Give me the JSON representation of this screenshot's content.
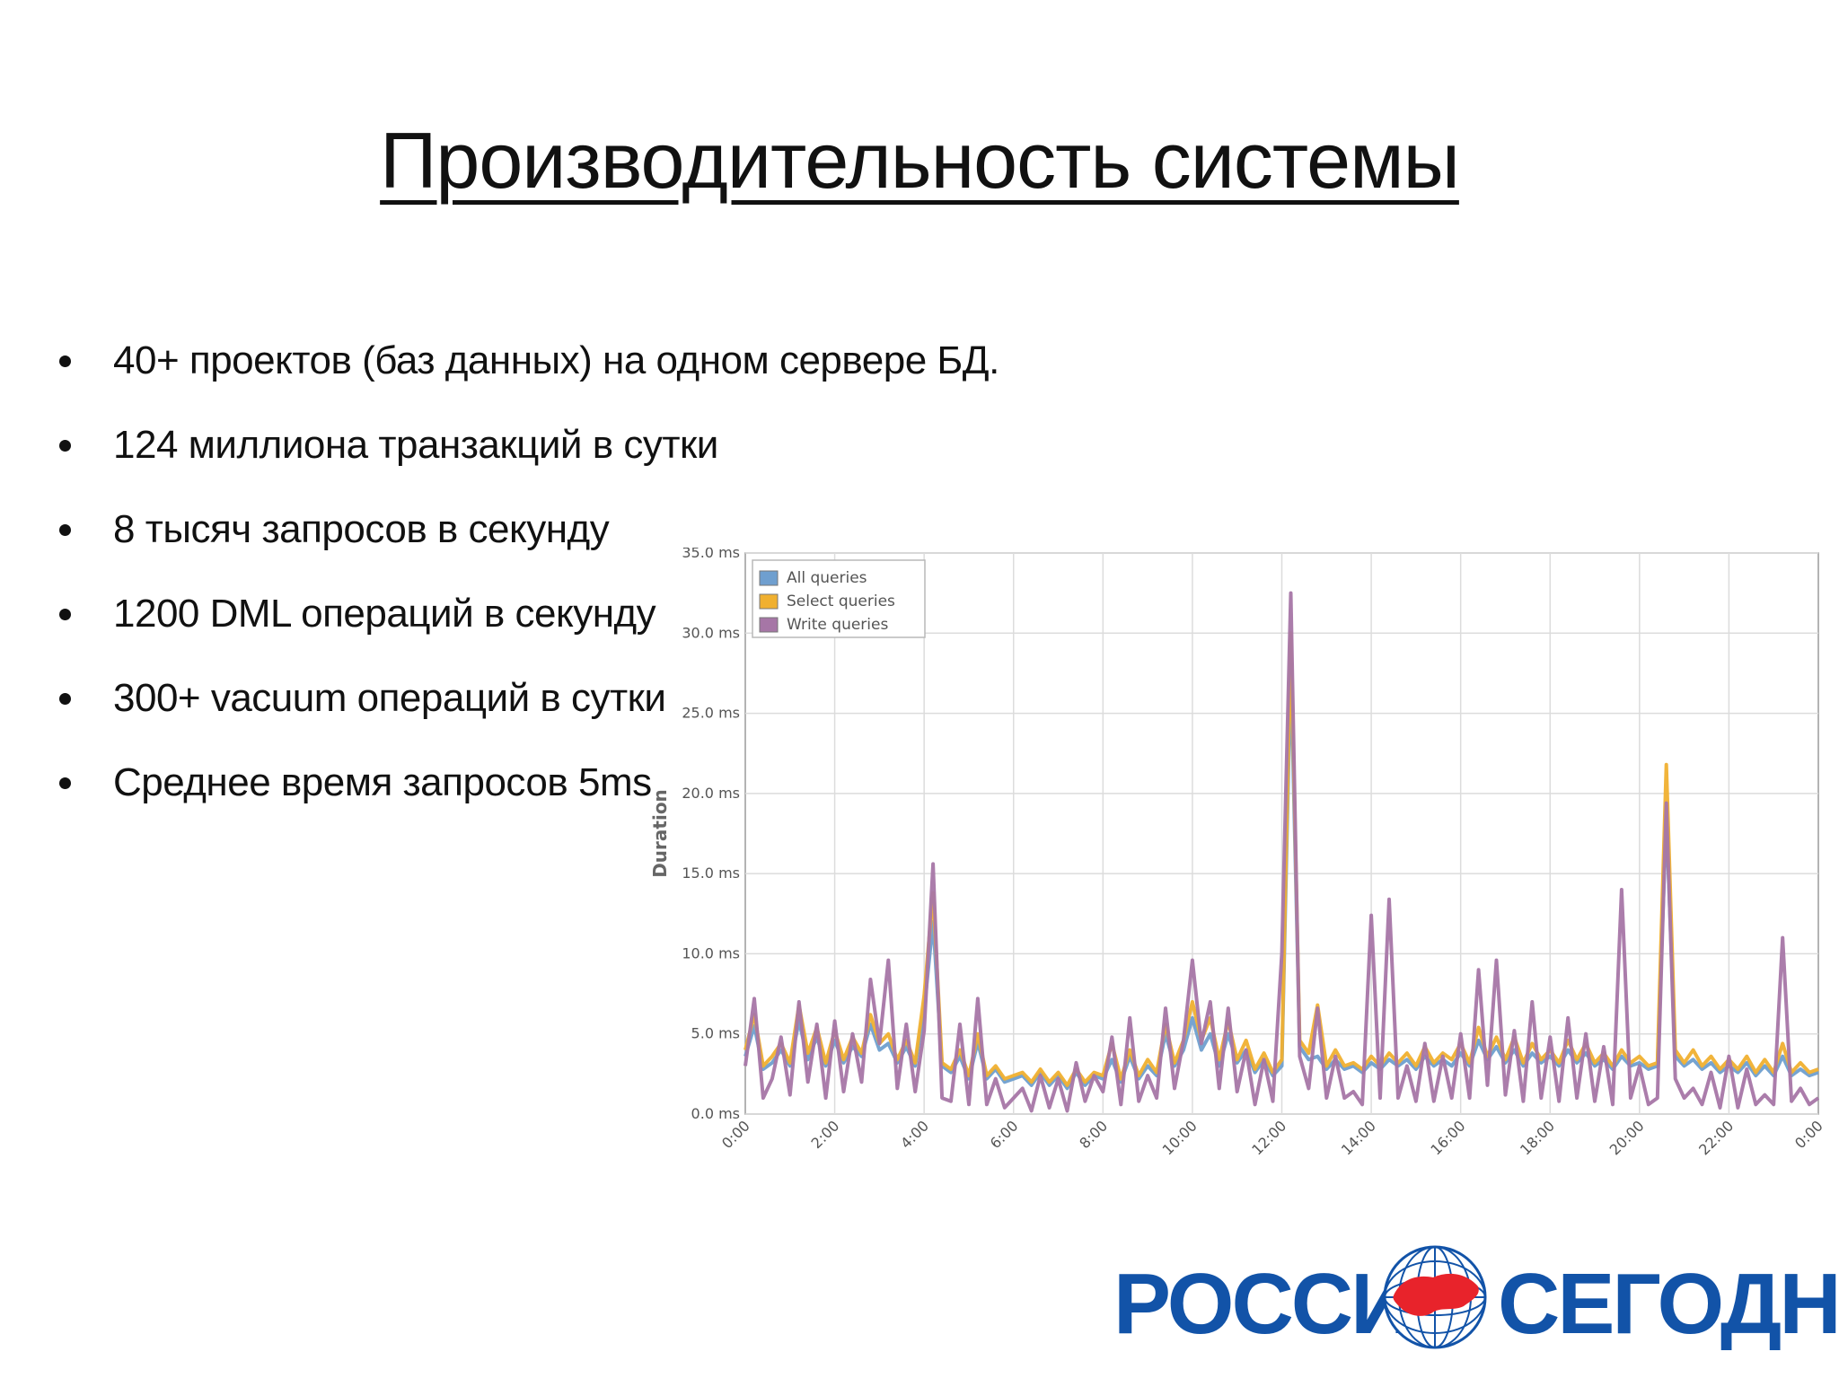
{
  "slide": {
    "title": "Производительность системы",
    "bullets": [
      "40+ проектов (баз данных) на одном сервере БД.",
      "124 миллиона транзакций в сутки",
      "8 тысяч запросов в секунду",
      "1200 DML операций в секунду",
      "300+ vacuum операций в сутки",
      "Среднее время запросов 5ms"
    ]
  },
  "logo": {
    "left_word": "РОССИЯ",
    "right_word": "СЕГОДНЯ"
  },
  "colors": {
    "all_queries": "#6f9fcf",
    "select_queries": "#f0b030",
    "write_queries": "#a676a6",
    "brand_blue": "#1253a8",
    "brand_red": "#e8232b"
  },
  "chart_data": {
    "type": "line",
    "title": "",
    "ylabel": "Duration",
    "xlabel": "",
    "ylim": [
      0,
      35
    ],
    "y_ticks": [
      "0.0 ms",
      "5.0 ms",
      "10.0 ms",
      "15.0 ms",
      "20.0 ms",
      "25.0 ms",
      "30.0 ms",
      "35.0 ms"
    ],
    "x_ticks": [
      "0:00",
      "2:00",
      "4:00",
      "6:00",
      "8:00",
      "10:00",
      "12:00",
      "14:00",
      "16:00",
      "18:00",
      "20:00",
      "22:00",
      "0:00"
    ],
    "grid": true,
    "legend_position": "top-left",
    "x": [
      0,
      0.2,
      0.4,
      0.6,
      0.8,
      1.0,
      1.2,
      1.4,
      1.6,
      1.8,
      2.0,
      2.2,
      2.4,
      2.6,
      2.8,
      3.0,
      3.2,
      3.4,
      3.6,
      3.8,
      4.0,
      4.2,
      4.4,
      4.6,
      4.8,
      5.0,
      5.2,
      5.4,
      5.6,
      5.8,
      6.0,
      6.2,
      6.4,
      6.6,
      6.8,
      7.0,
      7.2,
      7.4,
      7.6,
      7.8,
      8.0,
      8.2,
      8.4,
      8.6,
      8.8,
      9.0,
      9.2,
      9.4,
      9.6,
      9.8,
      10.0,
      10.2,
      10.4,
      10.6,
      10.8,
      11.0,
      11.2,
      11.4,
      11.6,
      11.8,
      12.0,
      12.2,
      12.4,
      12.6,
      12.8,
      13.0,
      13.2,
      13.4,
      13.6,
      13.8,
      14.0,
      14.2,
      14.4,
      14.6,
      14.8,
      15.0,
      15.2,
      15.4,
      15.6,
      15.8,
      16.0,
      16.2,
      16.4,
      16.6,
      16.8,
      17.0,
      17.2,
      17.4,
      17.6,
      17.8,
      18.0,
      18.2,
      18.4,
      18.6,
      18.8,
      19.0,
      19.2,
      19.4,
      19.6,
      19.8,
      20.0,
      20.2,
      20.4,
      20.6,
      20.8,
      21.0,
      21.2,
      21.4,
      21.6,
      21.8,
      22.0,
      22.2,
      22.4,
      22.6,
      22.8,
      23.0,
      23.2,
      23.4,
      23.6,
      23.8,
      24.0
    ],
    "series": [
      {
        "name": "All queries",
        "values": [
          3.6,
          5.5,
          2.8,
          3.2,
          4.0,
          3.0,
          5.8,
          3.4,
          4.8,
          3.0,
          4.6,
          3.2,
          4.2,
          3.6,
          5.6,
          4.0,
          4.4,
          3.2,
          4.2,
          3.0,
          6.5,
          12.0,
          3.0,
          2.6,
          3.6,
          2.2,
          4.5,
          2.2,
          2.8,
          2.0,
          2.2,
          2.4,
          1.8,
          2.6,
          1.8,
          2.4,
          1.6,
          2.6,
          1.8,
          2.4,
          2.2,
          3.4,
          2.0,
          3.6,
          2.2,
          3.0,
          2.4,
          5.0,
          3.0,
          4.0,
          6.0,
          4.0,
          5.0,
          3.0,
          5.0,
          3.2,
          4.0,
          2.6,
          3.4,
          2.4,
          3.0,
          28.0,
          4.2,
          3.4,
          3.6,
          2.8,
          3.4,
          2.8,
          3.0,
          2.6,
          3.2,
          2.8,
          3.4,
          3.0,
          3.4,
          2.8,
          3.6,
          3.0,
          3.4,
          3.0,
          3.8,
          3.0,
          4.6,
          3.4,
          4.2,
          3.2,
          4.0,
          3.0,
          3.8,
          3.2,
          3.6,
          3.0,
          4.0,
          3.2,
          3.8,
          3.0,
          3.4,
          2.8,
          3.6,
          3.0,
          3.2,
          2.8,
          3.0,
          18.5,
          3.6,
          3.0,
          3.4,
          2.8,
          3.2,
          2.6,
          3.0,
          2.6,
          3.2,
          2.4,
          3.0,
          2.4,
          3.6,
          2.4,
          2.8,
          2.4,
          2.6
        ]
      },
      {
        "name": "Select queries",
        "values": [
          4.0,
          6.2,
          3.0,
          3.6,
          4.4,
          3.2,
          6.8,
          3.8,
          5.4,
          3.2,
          5.2,
          3.4,
          4.8,
          3.8,
          6.2,
          4.4,
          5.0,
          3.4,
          4.6,
          3.2,
          7.4,
          13.8,
          3.2,
          2.8,
          4.0,
          2.4,
          5.0,
          2.4,
          3.0,
          2.2,
          2.4,
          2.6,
          2.0,
          2.8,
          2.0,
          2.6,
          1.8,
          2.8,
          2.0,
          2.6,
          2.4,
          4.4,
          2.2,
          4.0,
          2.4,
          3.4,
          2.6,
          5.6,
          3.2,
          4.6,
          7.0,
          4.6,
          6.0,
          3.4,
          5.8,
          3.4,
          4.6,
          2.8,
          3.8,
          2.6,
          3.4,
          30.0,
          4.6,
          3.8,
          6.8,
          3.0,
          4.0,
          3.0,
          3.2,
          2.8,
          3.6,
          3.0,
          3.8,
          3.2,
          3.8,
          3.0,
          4.2,
          3.2,
          3.8,
          3.4,
          4.4,
          3.2,
          5.4,
          3.6,
          4.8,
          3.4,
          4.8,
          3.2,
          4.4,
          3.4,
          4.0,
          3.2,
          4.6,
          3.4,
          4.4,
          3.2,
          3.8,
          3.0,
          4.0,
          3.2,
          3.6,
          3.0,
          3.2,
          21.8,
          4.0,
          3.2,
          4.0,
          3.0,
          3.6,
          2.8,
          3.4,
          2.8,
          3.6,
          2.6,
          3.4,
          2.6,
          4.4,
          2.6,
          3.2,
          2.6,
          2.8
        ]
      },
      {
        "name": "Write queries",
        "values": [
          3.0,
          7.2,
          1.0,
          2.2,
          4.8,
          1.2,
          7.0,
          2.0,
          5.6,
          1.0,
          5.8,
          1.4,
          5.0,
          2.0,
          8.4,
          4.4,
          9.6,
          1.6,
          5.6,
          1.4,
          5.2,
          15.6,
          1.0,
          0.8,
          5.6,
          0.6,
          7.2,
          0.6,
          2.2,
          0.4,
          1.0,
          1.6,
          0.2,
          2.4,
          0.4,
          2.2,
          0.2,
          3.2,
          0.8,
          2.4,
          1.4,
          4.8,
          0.6,
          6.0,
          0.8,
          2.4,
          1.0,
          6.6,
          1.6,
          4.6,
          9.6,
          4.4,
          7.0,
          1.6,
          6.6,
          1.4,
          4.0,
          0.6,
          3.4,
          0.8,
          10.0,
          32.5,
          3.6,
          1.6,
          6.6,
          1.0,
          3.6,
          1.0,
          1.4,
          0.6,
          12.4,
          1.0,
          13.4,
          1.0,
          3.0,
          0.8,
          4.4,
          0.8,
          3.6,
          1.0,
          5.0,
          1.0,
          9.0,
          1.8,
          9.6,
          1.2,
          5.2,
          0.8,
          7.0,
          1.0,
          4.8,
          0.8,
          6.0,
          1.0,
          5.0,
          0.8,
          4.2,
          0.6,
          14.0,
          1.0,
          3.0,
          0.6,
          1.0,
          19.4,
          2.2,
          1.0,
          1.6,
          0.6,
          2.6,
          0.4,
          3.6,
          0.4,
          2.8,
          0.6,
          1.2,
          0.6,
          11.0,
          0.8,
          1.6,
          0.6,
          1.0
        ]
      }
    ]
  }
}
